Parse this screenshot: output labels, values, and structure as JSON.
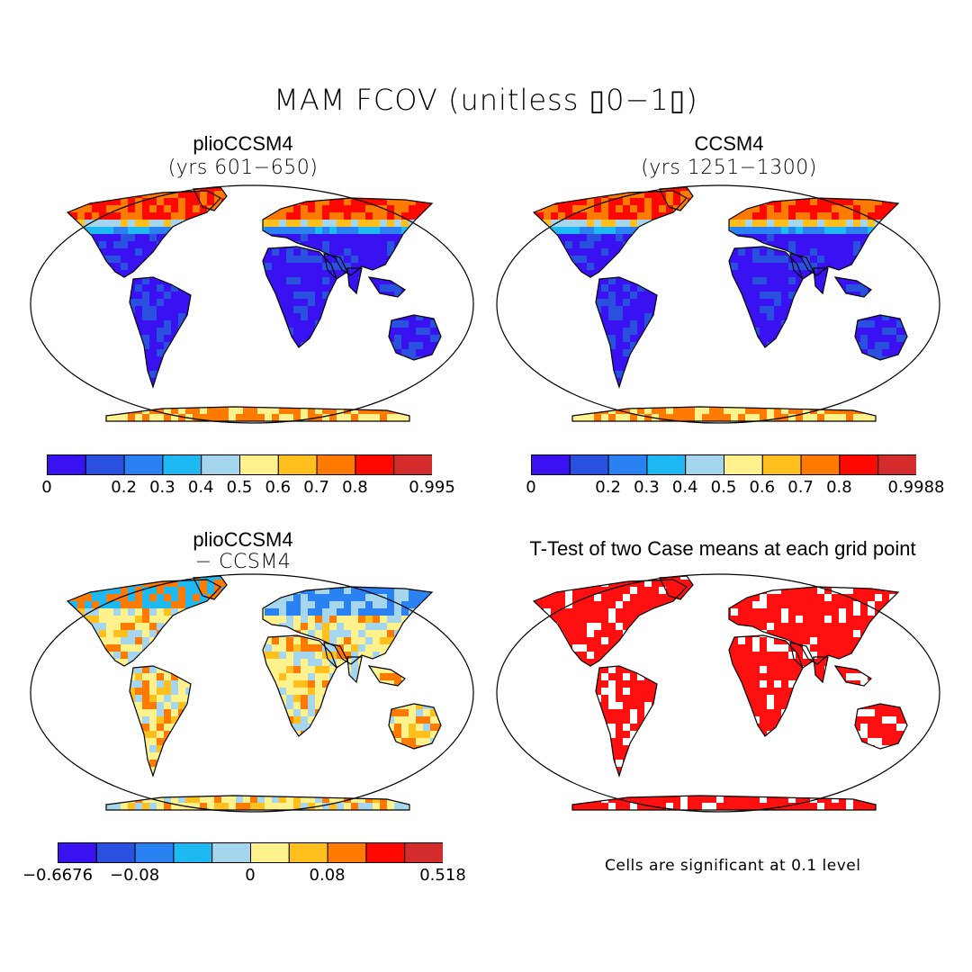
{
  "figure": {
    "title": "MAM FCOV (unitless ▯0−1▯)"
  },
  "palette": [
    "#3a12f2",
    "#2a50e0",
    "#2a82f2",
    "#1eb8f2",
    "#a6d6ee",
    "#fff28c",
    "#ffc01e",
    "#ff7a00",
    "#ff0800",
    "#d42c2c"
  ],
  "land_color_sig": "#ff1010",
  "panels": [
    {
      "id": "plio",
      "title": "plioCCSM4",
      "subtitle": "(yrs 601−650)",
      "field": "fcov",
      "cbar_ticks": [
        "0",
        "0.2",
        "0.3",
        "0.4",
        "0.5",
        "0.6",
        "0.7",
        "0.8",
        "0.995"
      ]
    },
    {
      "id": "ccsm",
      "title": "CCSM4",
      "subtitle": "(yrs 1251−1300)",
      "field": "fcov",
      "cbar_ticks": [
        "0",
        "0.2",
        "0.3",
        "0.4",
        "0.5",
        "0.6",
        "0.7",
        "0.8",
        "0.9988"
      ]
    },
    {
      "id": "diff",
      "title": "plioCCSM4",
      "subtitle": "− CCSM4",
      "field": "diff",
      "cbar_ticks": [
        "−0.6676",
        "−0.08",
        "0",
        "0.08",
        "0.518"
      ]
    },
    {
      "id": "ttest",
      "title": "T-Test of two Case means at each grid point",
      "subtitle": "",
      "field": "sig",
      "note": "Cells are significant at 0.1 level"
    }
  ]
}
